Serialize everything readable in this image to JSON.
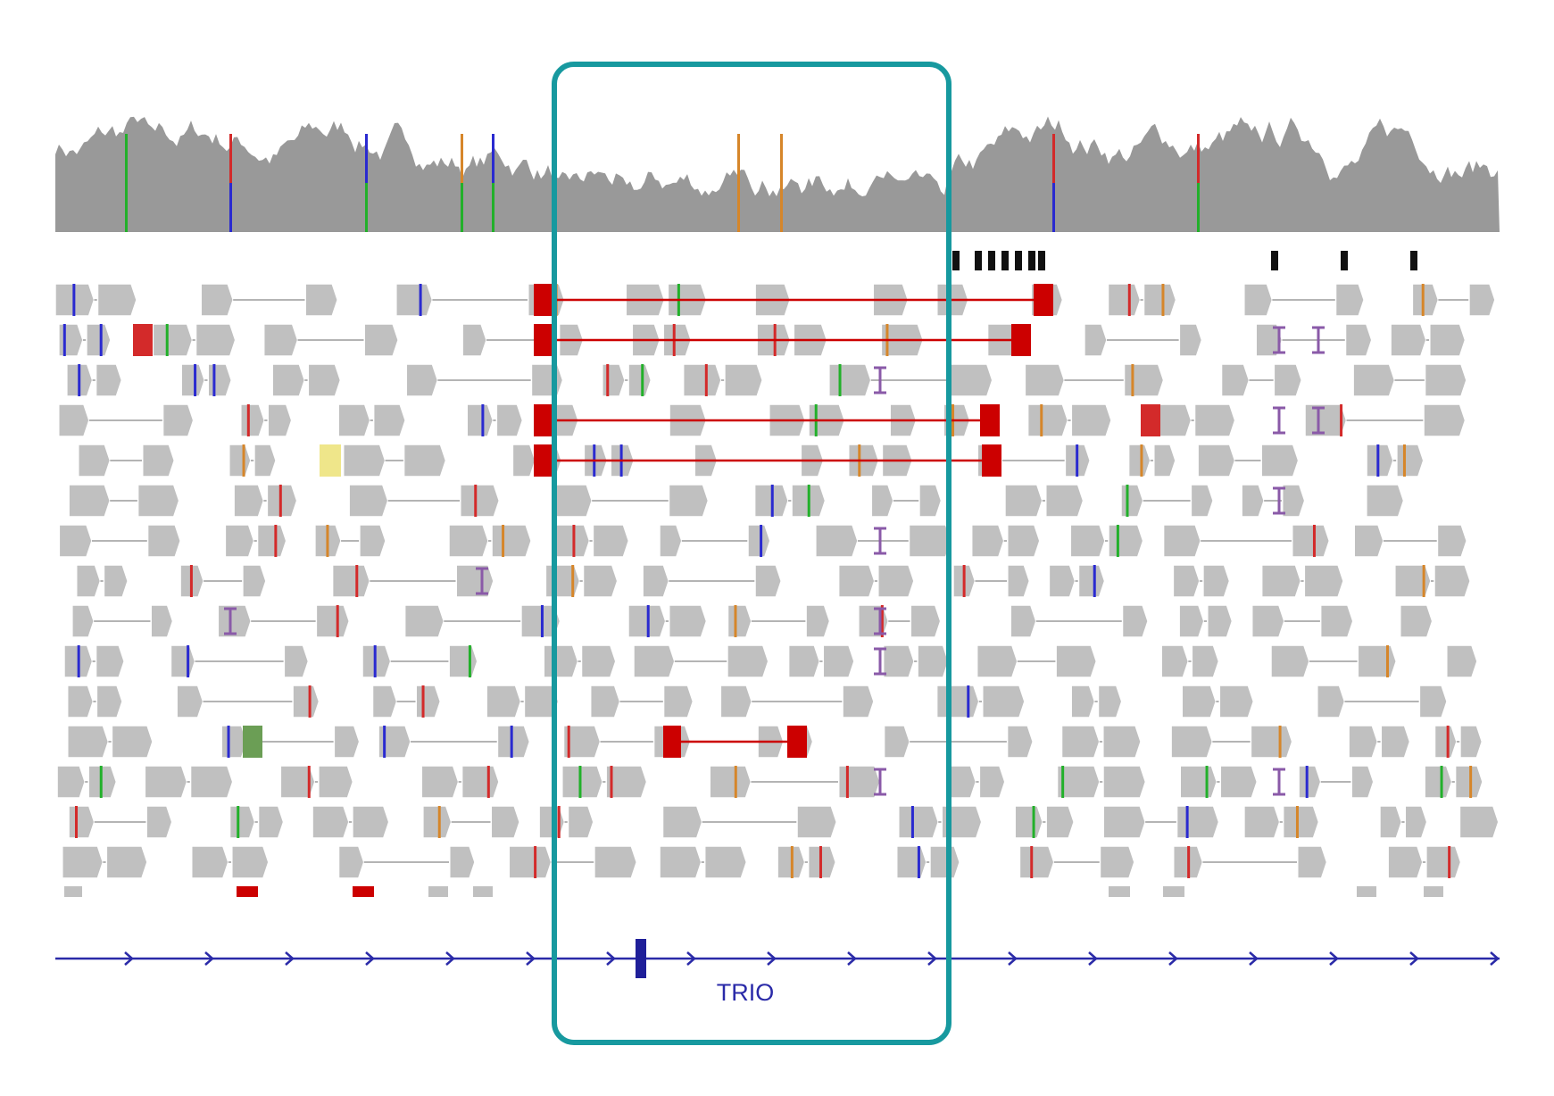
{
  "gene": {
    "name": "TRIO",
    "strand": "+"
  },
  "colors": {
    "coverage": "#999999",
    "read": "#c0c0c0",
    "read_outline": "#ffffff",
    "intron_line": "#b4b4b4",
    "split_read": "#cc0000",
    "insertion": "#8a5aa8",
    "highlight_box": "#17999f",
    "gene_track": "#2a2aa8",
    "mismatch_A": "#22b02a",
    "mismatch_C": "#2a2ad0",
    "mismatch_G": "#d6862a",
    "mismatch_T": "#d32a2a",
    "soft_clip_yellow": "#efe68a",
    "soft_clip_green": "#6b9e55",
    "feature_mark": "#111111"
  },
  "tracks": {
    "coverage": "coverage-track",
    "features": "feature-track",
    "alignments": "alignment-track",
    "genes": "gene-track"
  },
  "highlight": {
    "region": "highlighted-region"
  }
}
